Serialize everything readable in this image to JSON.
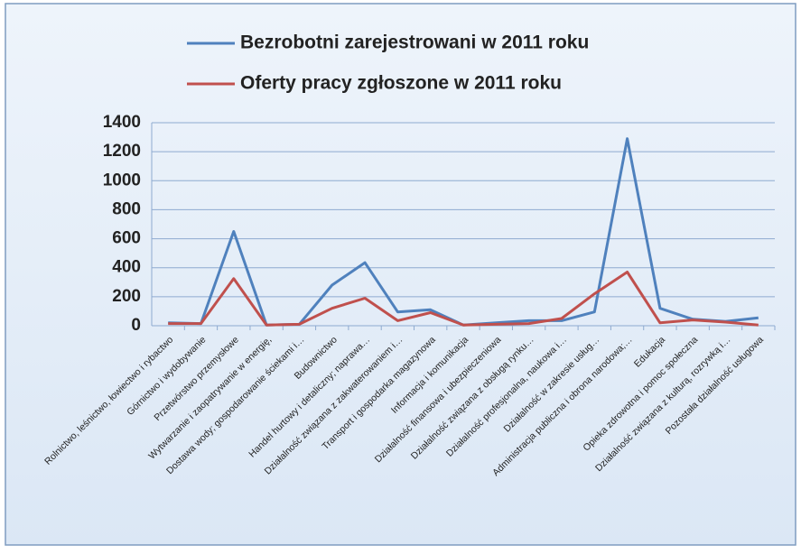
{
  "chart_data": {
    "type": "line",
    "categories": [
      "Rolnictwo, leśnictwo, łowiectwo i rybactwo",
      "Górnictwo i wydobywanie",
      "Przetwórstwo przemysłowe",
      "Wytwarzanie i zaopatrywanie w energię,",
      "Dostawa wody; gospodarowanie ściekami i…",
      "Budownictwo",
      "Handel hurtowy i detaliczny; naprawa…",
      "Działalność związana z zakwaterowaniem i…",
      "Transport i gospodarka magazynowa",
      "Informacja i komunikacja",
      "Działalność finansowa i ubezpieczeniowa",
      "Działalność związana z obsługą rynku…",
      "Działalność profesjonalna, naukowa i…",
      "Działalność w zakresie usług…",
      "Administracja publiczna i obrona narodowa;…",
      "Edukacja",
      "Opieka zdrowotna i pomoc społeczna",
      "Działalność związana z kulturą, rozrywką i…",
      "Pozostała działalność usługowa"
    ],
    "series": [
      {
        "name": "Bezrobotni zarejestrowani w 2011 roku",
        "color": "#4f81bd",
        "values": [
          20,
          15,
          650,
          5,
          10,
          280,
          435,
          95,
          110,
          5,
          20,
          35,
          35,
          95,
          1290,
          120,
          45,
          30,
          55
        ]
      },
      {
        "name": "Oferty pracy zgłoszone w 2011 roku",
        "color": "#c0504d",
        "values": [
          15,
          15,
          325,
          5,
          10,
          120,
          190,
          35,
          90,
          5,
          10,
          15,
          50,
          220,
          370,
          20,
          40,
          25,
          5
        ]
      }
    ],
    "ylim": [
      0,
      1400
    ],
    "yticks": [
      0,
      200,
      400,
      600,
      800,
      1000,
      1200,
      1400
    ],
    "grid": true,
    "legend": "top"
  }
}
